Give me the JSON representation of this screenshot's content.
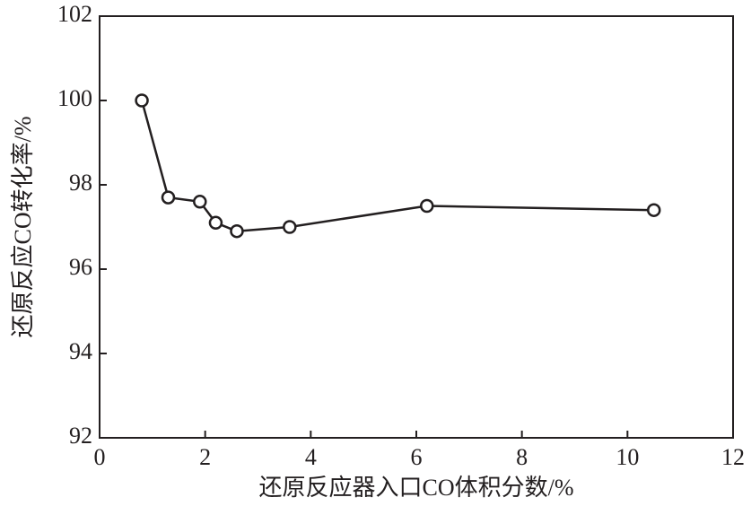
{
  "chart_data": {
    "type": "line",
    "x_label": "还原反应器入口CO体积分数/%",
    "y_label": "还原反应CO转化率/%",
    "x": [
      0.8,
      1.3,
      1.9,
      2.2,
      2.6,
      3.6,
      6.2,
      10.5
    ],
    "series": [
      {
        "color": "#231f20",
        "values": [
          100,
          97.7,
          97.6,
          97.1,
          96.9,
          97.0,
          97.5,
          97.4
        ]
      }
    ],
    "xlim": [
      0,
      12
    ],
    "xticks": [
      0,
      2,
      4,
      6,
      8,
      10,
      12
    ],
    "ylim": [
      92,
      102
    ],
    "yticks": [
      92,
      94,
      96,
      98,
      100,
      102
    ],
    "grid": false
  }
}
